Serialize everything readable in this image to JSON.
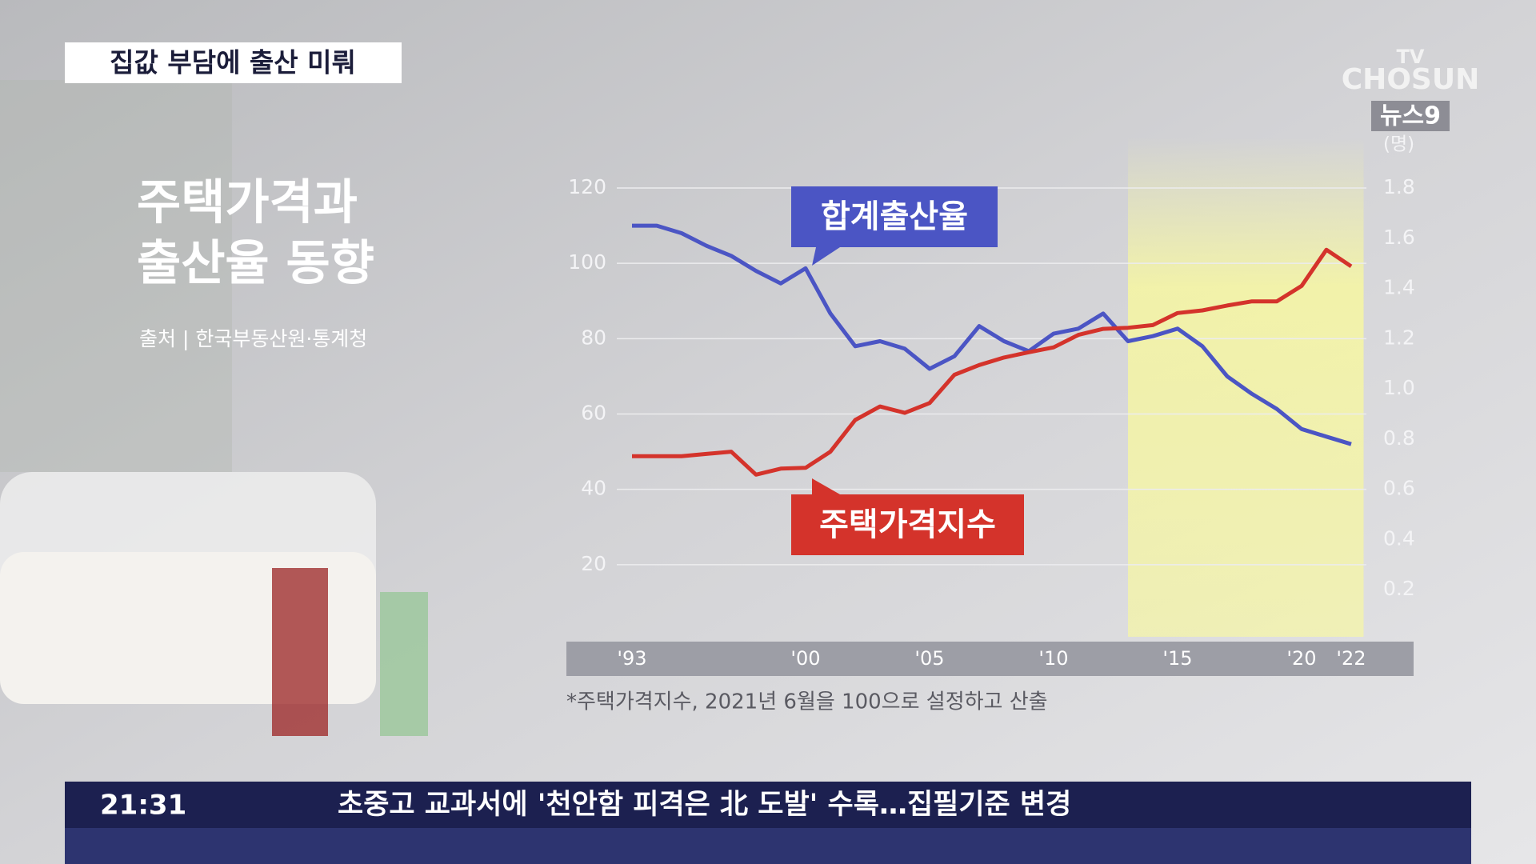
{
  "banner": "집값 부담에 출산 미뤄",
  "logo": {
    "top": "TV",
    "name": "CHOSUN",
    "program": "뉴스9"
  },
  "source": "출처 | 한국부동산원·통계청",
  "ticker": {
    "time": "21:31",
    "headline": "초중고 교과서에 '천안함 피격은 北 도발' 수록…집필기준 변경"
  },
  "chart_data": {
    "type": "line",
    "title": [
      "주택가격과",
      "출산율 동향"
    ],
    "y2_label": "(명)",
    "footnote": "*주택가격지수, 2021년 6월을 100으로 설정하고 산출",
    "x": [
      1993,
      1994,
      1995,
      1996,
      1997,
      1998,
      1999,
      2000,
      2001,
      2002,
      2003,
      2004,
      2005,
      2006,
      2007,
      2008,
      2009,
      2010,
      2011,
      2012,
      2013,
      2014,
      2015,
      2016,
      2017,
      2018,
      2019,
      2020,
      2021,
      2022
    ],
    "xlim": [
      1993,
      2022
    ],
    "xticks": [
      {
        "value": 1993,
        "label": "'93"
      },
      {
        "value": 2000,
        "label": "'00"
      },
      {
        "value": 2005,
        "label": "'05"
      },
      {
        "value": 2010,
        "label": "'10"
      },
      {
        "value": 2015,
        "label": "'15"
      },
      {
        "value": 2020,
        "label": "'20"
      },
      {
        "value": 2022,
        "label": "'22"
      }
    ],
    "ylim": [
      0,
      120
    ],
    "yticks": [
      20,
      40,
      60,
      80,
      100,
      120
    ],
    "y2lim": [
      0,
      1.8
    ],
    "y2ticks": [
      0.2,
      0.4,
      0.6,
      0.8,
      {
        "value": 1,
        "label": "1.0"
      },
      1.2,
      1.4,
      1.6,
      1.8
    ],
    "grid": true,
    "highlight_xlim": [
      2013,
      2022.5
    ],
    "series": [
      {
        "name": "합계출산율",
        "color": "#4b55c4",
        "axis": "y2",
        "values": [
          1.65,
          1.65,
          1.62,
          1.57,
          1.53,
          1.47,
          1.42,
          1.48,
          1.3,
          1.17,
          1.19,
          1.16,
          1.08,
          1.13,
          1.25,
          1.19,
          1.15,
          1.22,
          1.24,
          1.3,
          1.19,
          1.21,
          1.24,
          1.17,
          1.05,
          0.98,
          0.92,
          0.84,
          0.81,
          0.78
        ]
      },
      {
        "name": "주택가격지수",
        "color": "#d4332b",
        "values": [
          48.8,
          48.8,
          48.8,
          49.4,
          50.0,
          43.9,
          45.5,
          45.7,
          50.0,
          58.4,
          62.0,
          60.3,
          62.9,
          70.4,
          73.0,
          75.0,
          76.4,
          77.7,
          81.0,
          82.6,
          82.9,
          83.6,
          86.8,
          87.5,
          88.8,
          89.9,
          89.9,
          94.0,
          103.6,
          99.2
        ]
      }
    ]
  }
}
